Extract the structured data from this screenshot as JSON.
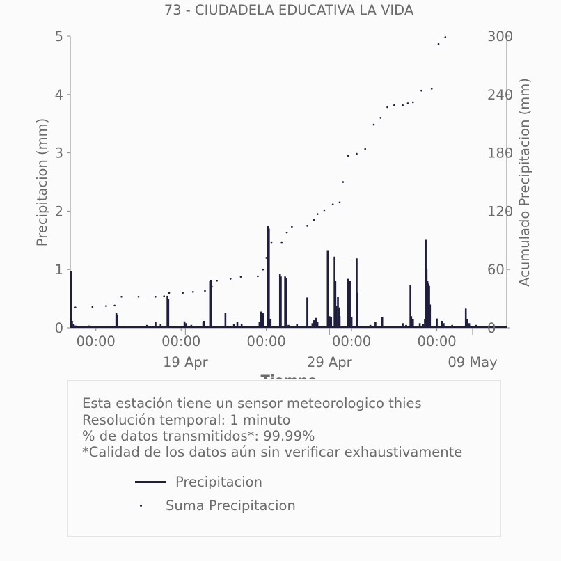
{
  "chart_data": {
    "type": "bar",
    "title": "73 - CIUDADELA EDUCATIVA LA VIDA",
    "xlabel": "Tiempo",
    "ylabel_left": "Precipitacion (mm)",
    "ylabel_right": "Acumulado Precipitacion (mm)",
    "ylim_left": [
      0,
      5
    ],
    "ylim_right": [
      0,
      300
    ],
    "yticks_left": [
      "0",
      "1",
      "2",
      "3",
      "4",
      "5"
    ],
    "yticks_right": [
      "0",
      "60",
      "120",
      "180",
      "240",
      "300"
    ],
    "xlim_days": [
      0,
      25.6
    ],
    "xticks_minor": [
      {
        "day": 1.5,
        "label": "00:00"
      },
      {
        "day": 6.5,
        "label": "00:00"
      },
      {
        "day": 11.5,
        "label": "00:00"
      },
      {
        "day": 16.5,
        "label": "00:00"
      },
      {
        "day": 21.5,
        "label": "00:00"
      }
    ],
    "xticks_major": [
      {
        "day": 6.75,
        "label": "19 Apr"
      },
      {
        "day": 15.2,
        "label": "29 Apr"
      },
      {
        "day": 23.6,
        "label": "09 May"
      }
    ],
    "grid": false,
    "series": [
      {
        "name": "Precipitacion",
        "color": "#1f1f3d",
        "style": "line",
        "points": [
          [
            0.05,
            0.97
          ],
          [
            0.1,
            0.12
          ],
          [
            0.2,
            0.06
          ],
          [
            0.3,
            0.04
          ],
          [
            1.0,
            0.03
          ],
          [
            1.1,
            0.04
          ],
          [
            1.7,
            0.03
          ],
          [
            1.9,
            0.02
          ],
          [
            2.7,
            0.25
          ],
          [
            2.75,
            0.22
          ],
          [
            4.5,
            0.05
          ],
          [
            5.0,
            0.1
          ],
          [
            5.3,
            0.07
          ],
          [
            5.7,
            0.55
          ],
          [
            5.75,
            0.5
          ],
          [
            6.7,
            0.11
          ],
          [
            6.8,
            0.08
          ],
          [
            7.1,
            0.05
          ],
          [
            7.8,
            0.1
          ],
          [
            7.85,
            0.12
          ],
          [
            8.2,
            0.8
          ],
          [
            8.25,
            0.82
          ],
          [
            9.1,
            0.26
          ],
          [
            9.6,
            0.07
          ],
          [
            9.8,
            0.1
          ],
          [
            10.05,
            0.07
          ],
          [
            11.1,
            0.1
          ],
          [
            11.2,
            0.28
          ],
          [
            11.3,
            0.25
          ],
          [
            11.6,
            1.75
          ],
          [
            11.65,
            1.7
          ],
          [
            11.75,
            0.15
          ],
          [
            12.3,
            0.92
          ],
          [
            12.35,
            0.88
          ],
          [
            12.6,
            0.88
          ],
          [
            12.65,
            0.85
          ],
          [
            12.8,
            0.05
          ],
          [
            13.3,
            0.07
          ],
          [
            13.9,
            0.52
          ],
          [
            14.2,
            0.08
          ],
          [
            14.3,
            0.13
          ],
          [
            14.4,
            0.17
          ],
          [
            14.5,
            0.1
          ],
          [
            15.1,
            1.33
          ],
          [
            15.2,
            0.2
          ],
          [
            15.3,
            0.18
          ],
          [
            15.5,
            1.22
          ],
          [
            15.55,
            0.8
          ],
          [
            15.6,
            0.38
          ],
          [
            15.7,
            0.53
          ],
          [
            15.75,
            0.35
          ],
          [
            15.8,
            0.2
          ],
          [
            16.3,
            0.84
          ],
          [
            16.4,
            0.8
          ],
          [
            16.5,
            0.18
          ],
          [
            16.8,
            1.19
          ],
          [
            16.85,
            0.6
          ],
          [
            17.6,
            0.05
          ],
          [
            17.9,
            0.1
          ],
          [
            18.3,
            0.18
          ],
          [
            19.5,
            0.08
          ],
          [
            19.7,
            0.05
          ],
          [
            19.95,
            0.74
          ],
          [
            20.0,
            0.2
          ],
          [
            20.1,
            0.15
          ],
          [
            20.5,
            0.08
          ],
          [
            20.7,
            0.07
          ],
          [
            20.8,
            0.15
          ],
          [
            20.85,
            1.51
          ],
          [
            20.9,
            1.0
          ],
          [
            20.95,
            0.8
          ],
          [
            21.0,
            0.76
          ],
          [
            21.05,
            0.72
          ],
          [
            21.1,
            0.4
          ],
          [
            21.5,
            0.16
          ],
          [
            21.8,
            0.12
          ],
          [
            21.9,
            0.08
          ],
          [
            22.4,
            0.05
          ],
          [
            23.2,
            0.33
          ],
          [
            23.3,
            0.15
          ],
          [
            23.4,
            0.08
          ],
          [
            23.8,
            0.05
          ]
        ]
      },
      {
        "name": "Suma Precipitacion",
        "color": "#1f1f3d",
        "style": "dots",
        "points": [
          [
            0.3,
            21
          ],
          [
            1.3,
            21.5
          ],
          [
            2.1,
            22.5
          ],
          [
            2.6,
            23
          ],
          [
            3.0,
            32
          ],
          [
            4.0,
            32
          ],
          [
            5.0,
            32
          ],
          [
            5.5,
            32.5
          ],
          [
            5.8,
            36
          ],
          [
            6.6,
            36
          ],
          [
            7.2,
            37
          ],
          [
            7.9,
            38
          ],
          [
            8.3,
            42.5
          ],
          [
            8.6,
            48.5
          ],
          [
            9.4,
            50.5
          ],
          [
            10.0,
            52.5
          ],
          [
            11.0,
            53
          ],
          [
            11.3,
            60
          ],
          [
            11.5,
            72
          ],
          [
            11.8,
            88
          ],
          [
            12.4,
            88
          ],
          [
            12.7,
            98
          ],
          [
            13.0,
            104
          ],
          [
            13.9,
            105
          ],
          [
            14.3,
            111
          ],
          [
            14.5,
            117
          ],
          [
            14.9,
            121
          ],
          [
            15.4,
            127
          ],
          [
            15.8,
            129
          ],
          [
            16.0,
            150
          ],
          [
            16.3,
            177
          ],
          [
            16.8,
            179
          ],
          [
            17.3,
            184
          ],
          [
            17.8,
            209
          ],
          [
            18.2,
            216
          ],
          [
            18.6,
            227
          ],
          [
            19.0,
            229
          ],
          [
            19.5,
            229
          ],
          [
            19.8,
            231
          ],
          [
            20.1,
            232
          ],
          [
            20.6,
            244
          ],
          [
            21.2,
            246
          ],
          [
            21.6,
            292
          ],
          [
            22.0,
            299
          ]
        ]
      }
    ]
  },
  "legend_box": {
    "notes": [
      "Esta estación tiene un sensor meteorologico thies",
      "Resolución temporal: 1 minuto",
      "% de datos transmitidos*: 99.99%",
      "*Calidad de los datos aún sin verificar exhaustivamente"
    ],
    "entries": [
      {
        "label": "Precipitacion"
      },
      {
        "label": "Suma Precipitacion"
      }
    ]
  }
}
